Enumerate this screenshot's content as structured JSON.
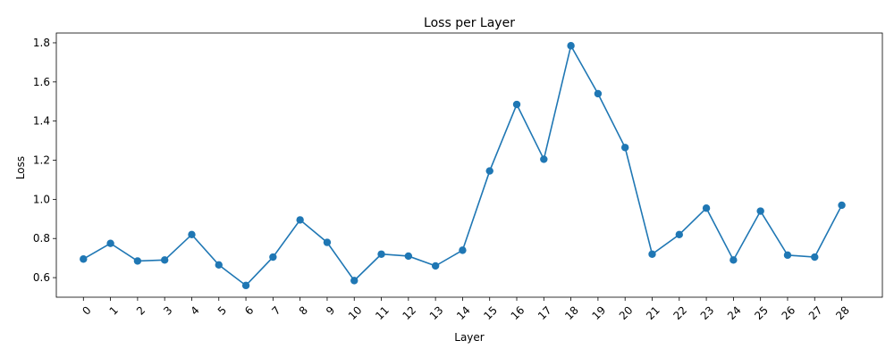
{
  "chart_data": {
    "type": "line",
    "title": "Loss per Layer",
    "xlabel": "Layer",
    "ylabel": "Loss",
    "categories": [
      "0",
      "1",
      "2",
      "3",
      "4",
      "5",
      "6",
      "7",
      "8",
      "9",
      "10",
      "11",
      "12",
      "13",
      "14",
      "15",
      "16",
      "17",
      "18",
      "19",
      "20",
      "21",
      "22",
      "23",
      "24",
      "25",
      "26",
      "27",
      "28"
    ],
    "x": [
      0,
      1,
      2,
      3,
      4,
      5,
      6,
      7,
      8,
      9,
      10,
      11,
      12,
      13,
      14,
      15,
      16,
      17,
      18,
      19,
      20,
      21,
      22,
      23,
      24,
      25,
      26,
      27,
      28
    ],
    "values": [
      0.695,
      0.775,
      0.685,
      0.69,
      0.82,
      0.665,
      0.56,
      0.705,
      0.895,
      0.78,
      0.585,
      0.72,
      0.71,
      0.66,
      0.74,
      1.145,
      1.485,
      1.205,
      1.785,
      1.54,
      1.265,
      0.72,
      0.82,
      0.955,
      0.69,
      0.94,
      0.715,
      0.705,
      0.97
    ],
    "yticks": [
      "0.6",
      "0.8",
      "1.0",
      "1.2",
      "1.4",
      "1.6",
      "1.8"
    ],
    "ylim": [
      0.5,
      1.85
    ],
    "xlim": [
      -1,
      29.5
    ],
    "grid": false,
    "line_color": "#1f77b4",
    "marker": "circle"
  }
}
